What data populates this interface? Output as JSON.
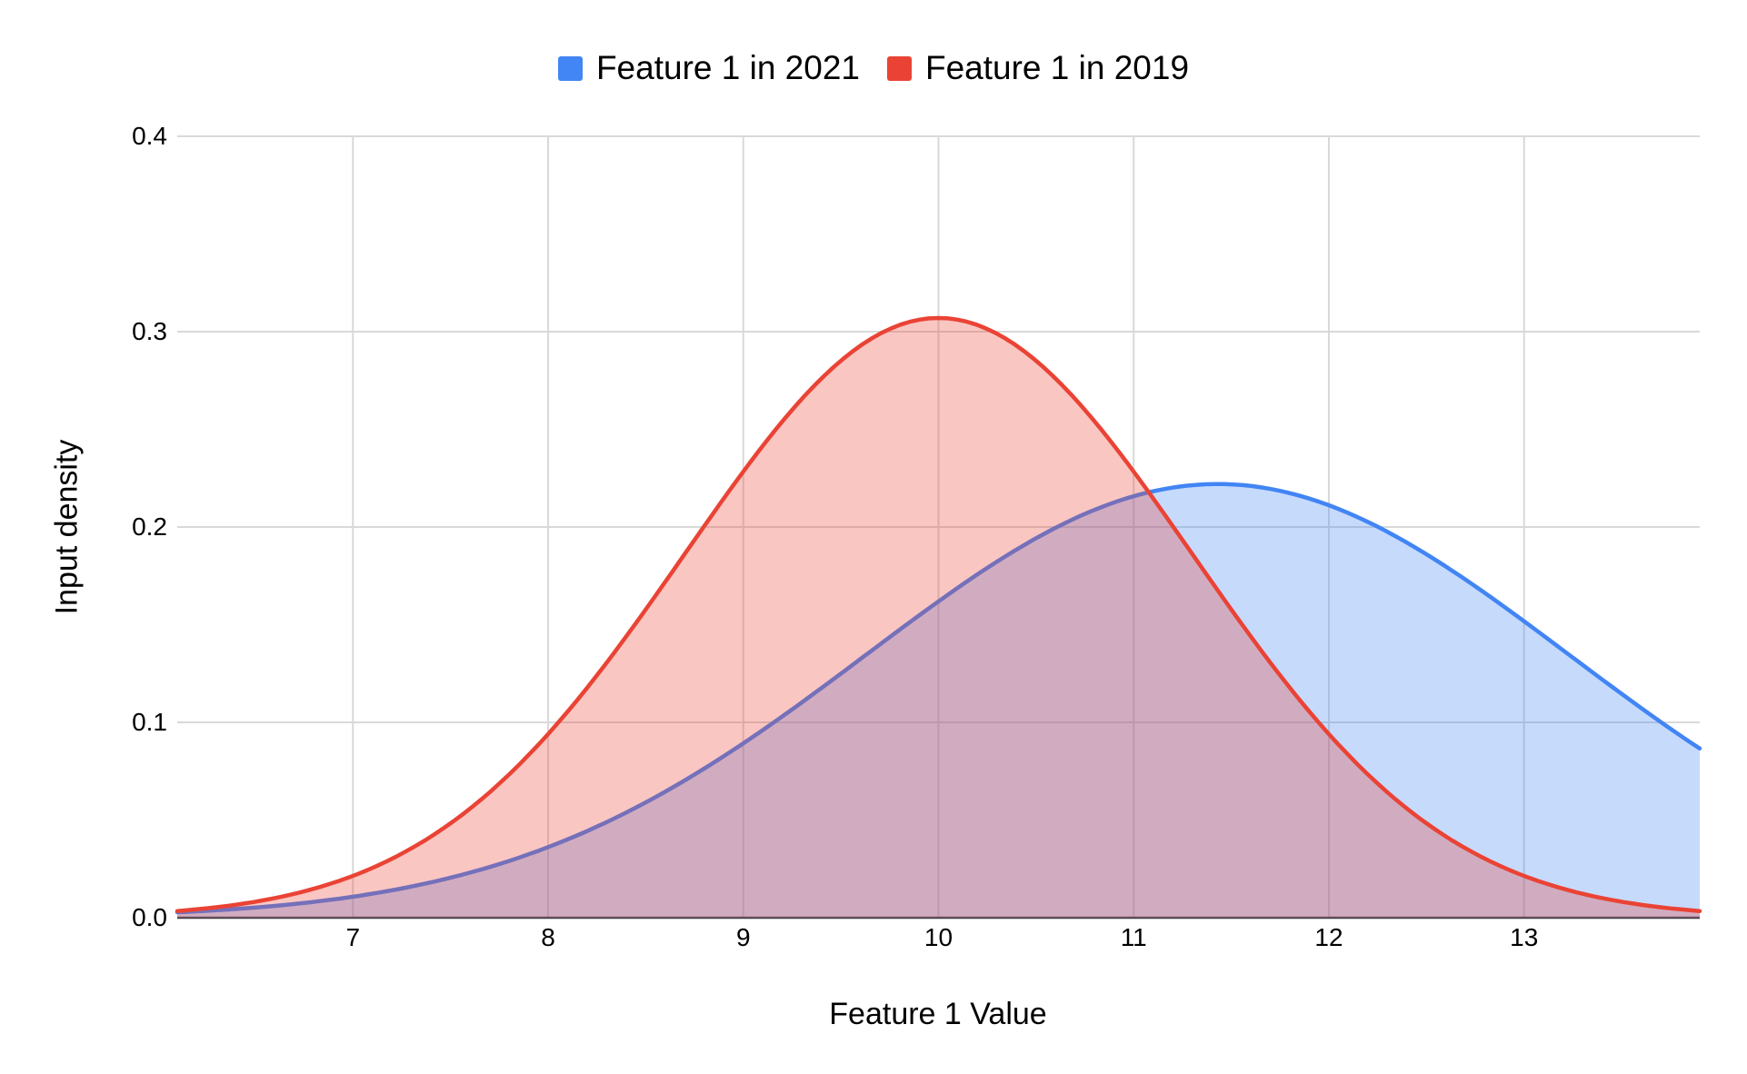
{
  "legend": {
    "items": [
      {
        "label": "Feature 1 in 2021",
        "color": "#4285F4"
      },
      {
        "label": "Feature 1 in 2019",
        "color": "#EA4335"
      }
    ]
  },
  "axes": {
    "x": {
      "title": "Feature 1 Value",
      "tick_labels": [
        "7",
        "8",
        "9",
        "10",
        "11",
        "12",
        "13"
      ],
      "tick_values": [
        7,
        8,
        9,
        10,
        11,
        12,
        13
      ]
    },
    "y": {
      "title": "Input density",
      "tick_labels": [
        "0.0",
        "0.1",
        "0.2",
        "0.3",
        "0.4"
      ],
      "tick_values": [
        0,
        0.1,
        0.2,
        0.3,
        0.4
      ]
    }
  },
  "chart_data": {
    "type": "area",
    "subtype": "gaussian-density",
    "title": "",
    "xlabel": "Feature 1 Value",
    "ylabel": "Input density",
    "x_range": [
      6.1,
      13.9
    ],
    "ylim": [
      0,
      0.4
    ],
    "grid": true,
    "legend_position": "top",
    "fill_opacity": 0.3,
    "series": [
      {
        "name": "Feature 1 in 2021",
        "color": "#4285F4",
        "mean": 11.43,
        "sd": 1.8,
        "peak_x": 11.43,
        "peak_y": 0.222,
        "value_at_left_edge": 0.003,
        "value_at_right_edge": 0.088
      },
      {
        "name": "Feature 1 in 2019",
        "color": "#EA4335",
        "mean": 10.0,
        "sd": 1.3,
        "peak_x": 10.0,
        "peak_y": 0.307,
        "value_at_left_edge": 0.003,
        "value_at_right_edge": 0.004
      }
    ],
    "crossover_point": {
      "x": 11.05,
      "y": 0.22
    }
  },
  "colors": {
    "grid": "#D9D9D9",
    "baseline": "#424242",
    "text": "#000000",
    "background": "#FFFFFF"
  }
}
